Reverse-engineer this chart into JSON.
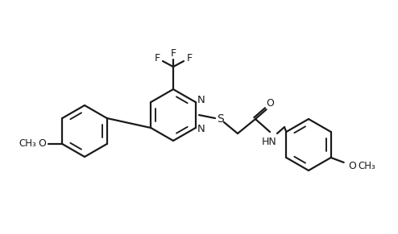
{
  "bg_color": "#ffffff",
  "line_color": "#1a1a1a",
  "line_width": 1.6,
  "font_size": 9,
  "figsize": [
    4.94,
    2.91
  ],
  "dpi": 100,
  "xlim": [
    0,
    494
  ],
  "ylim": [
    0,
    291
  ]
}
